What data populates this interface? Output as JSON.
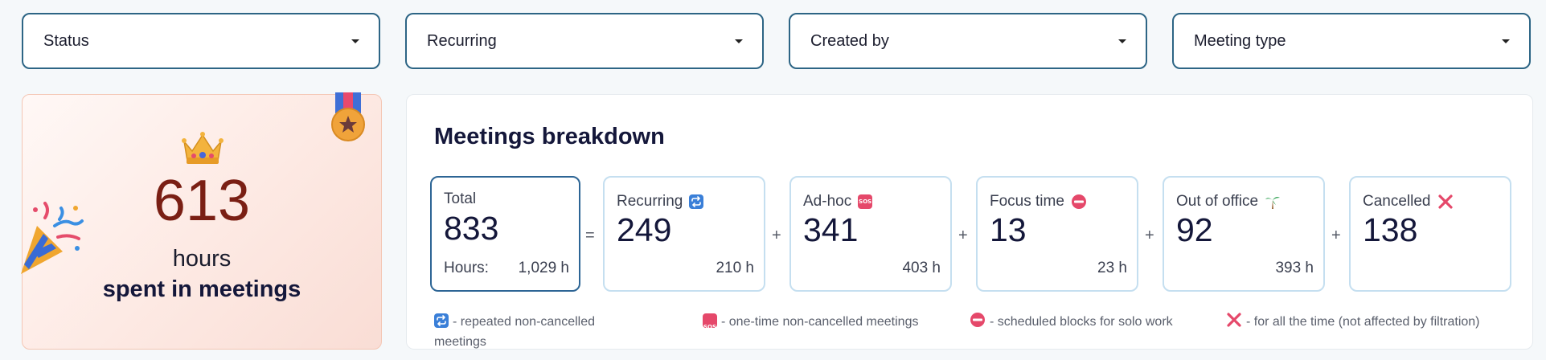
{
  "filters": [
    {
      "label": "Status"
    },
    {
      "label": "Recurring"
    },
    {
      "label": "Created by"
    },
    {
      "label": "Meeting type"
    }
  ],
  "hours_card": {
    "value": "613",
    "unit": "hours",
    "caption": "spent in meetings"
  },
  "breakdown": {
    "title": "Meetings breakdown",
    "total": {
      "label": "Total",
      "value": "833",
      "hours_label": "Hours:",
      "hours": "1,029 h"
    },
    "cards": [
      {
        "label": "Recurring",
        "value": "249",
        "hours": "210 h",
        "icon": "repeat-icon"
      },
      {
        "label": "Ad-hoc",
        "value": "341",
        "hours": "403 h",
        "icon": "sos-icon"
      },
      {
        "label": "Focus time",
        "value": "13",
        "hours": "23 h",
        "icon": "no-entry-icon"
      },
      {
        "label": "Out of office",
        "value": "92",
        "hours": "393 h",
        "icon": "palm-tree-icon"
      },
      {
        "label": "Cancelled",
        "value": "138",
        "hours": "",
        "icon": "cross-mark-icon"
      }
    ],
    "operators": [
      "=",
      "+",
      "+",
      "+",
      "+"
    ],
    "sos_text": "SOS",
    "legend": [
      {
        "icon": "repeat-icon",
        "text": "- repeated non-cancelled meetings"
      },
      {
        "icon": "sos-icon",
        "text": "- one-time non-cancelled meetings"
      },
      {
        "icon": "no-entry-icon",
        "text": "- scheduled blocks for solo work"
      },
      {
        "icon": "cross-mark-icon",
        "text": "- for all the time (not affected by filtration)"
      }
    ]
  },
  "colors": {
    "accent": "#2d6585",
    "hours_value": "#7a1f14",
    "card_border": "#c5dff0",
    "icon_blue": "#3a7fd8",
    "icon_red": "#e5486a"
  }
}
